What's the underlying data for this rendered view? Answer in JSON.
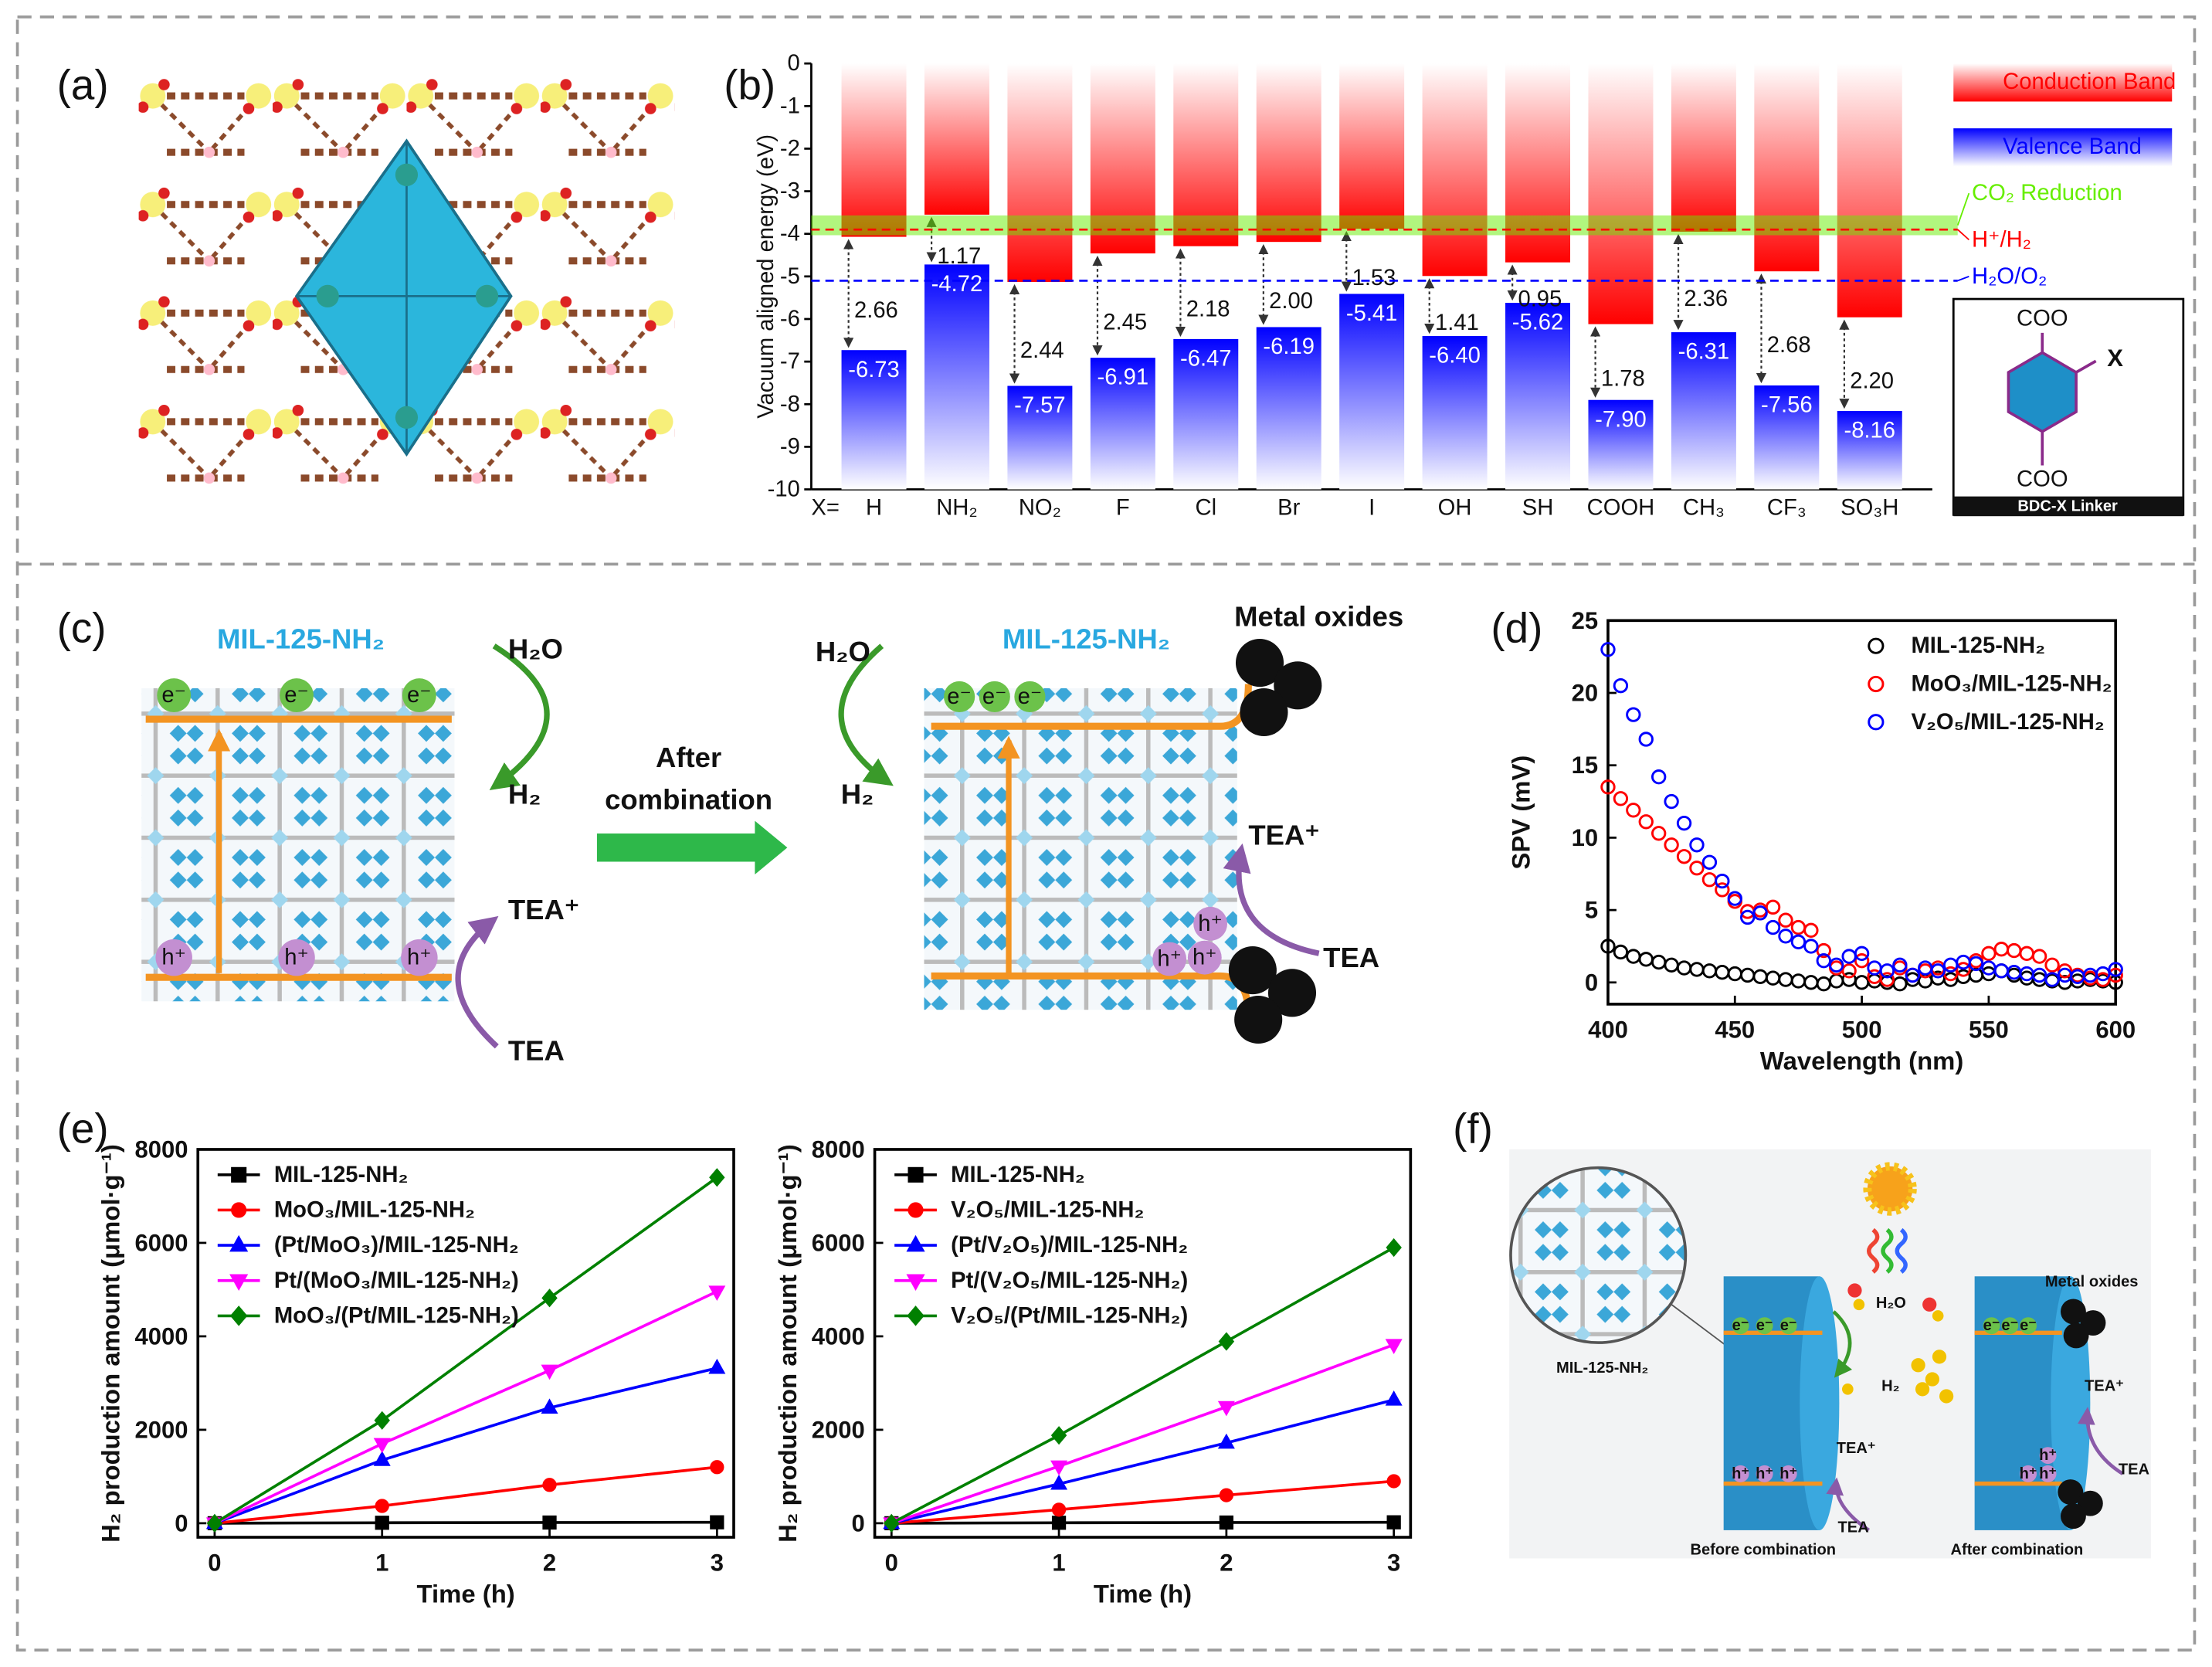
{
  "panel_labels": [
    "(a)",
    "(b)",
    "(c)",
    "(d)",
    "(e)",
    "(f)"
  ],
  "chart_data": [
    {
      "type": "bar",
      "ylabel": "Vacuum aligned energy (eV)",
      "x_prefix": "X=",
      "categories": [
        "H",
        "NH₂",
        "NO₂",
        "F",
        "Cl",
        "Br",
        "I",
        "OH",
        "SH",
        "COOH",
        "CH₃",
        "CF₃",
        "SO₃H"
      ],
      "series": [
        {
          "name": "Conduction Band",
          "color": "#ff0000",
          "values": [
            -4.07,
            -3.55,
            -5.13,
            -4.46,
            -4.29,
            -4.19,
            -3.88,
            -4.99,
            -4.67,
            -6.12,
            -3.95,
            -4.88,
            -5.96
          ]
        },
        {
          "name": "Valence Band",
          "color": "#0000ff",
          "values": [
            -6.73,
            -4.72,
            -7.57,
            -6.91,
            -6.47,
            -6.19,
            -5.41,
            -6.4,
            -5.62,
            -7.9,
            -6.31,
            -7.56,
            -8.16
          ],
          "value_labels": [
            "-6.73",
            "-4.72",
            "-7.57",
            "-6.91",
            "-6.47",
            "-6.19",
            "-5.41",
            "-6.40",
            "-5.62",
            "-7.90",
            "-6.31",
            "-7.56",
            "-8.16"
          ]
        }
      ],
      "gaps": {
        "values": [
          2.66,
          1.17,
          2.44,
          2.45,
          2.18,
          2,
          1.53,
          1.41,
          0.95,
          1.78,
          2.36,
          2.68,
          2.2
        ],
        "value_labels": [
          "2.66",
          "1.17",
          "2.44",
          "2.45",
          "2.18",
          "2.00",
          "1.53",
          "1.41",
          "0.95",
          "1.78",
          "2.36",
          "2.68",
          "2.20"
        ]
      },
      "reference_lines": [
        {
          "label": "CO₂ Reduction",
          "value": -3.8,
          "color": "#66ee00",
          "style": "band"
        },
        {
          "label": "H⁺/H₂",
          "value": -3.9,
          "color": "#ff0000",
          "style": "dashed"
        },
        {
          "label": "H₂O/O₂",
          "value": -5.1,
          "color": "#0000ff",
          "style": "dashed"
        }
      ],
      "ylim": [
        -10,
        0
      ],
      "yticks": [
        0,
        -1,
        -2,
        -3,
        -4,
        -5,
        -6,
        -7,
        -8,
        -9,
        -10
      ],
      "inset": {
        "title": "BDC-X Linker",
        "groups": [
          "COO",
          "COO"
        ],
        "substituent": "X"
      }
    },
    {
      "type": "scatter",
      "xlabel": "Wavelength (nm)",
      "ylabel": "SPV (mV)",
      "x": [
        400,
        405,
        410,
        415,
        420,
        425,
        430,
        435,
        440,
        445,
        450,
        455,
        460,
        465,
        470,
        475,
        480,
        485,
        490,
        495,
        500,
        505,
        510,
        515,
        520,
        525,
        530,
        535,
        540,
        545,
        550,
        555,
        560,
        565,
        570,
        575,
        580,
        585,
        590,
        595,
        600
      ],
      "series": [
        {
          "name": "MIL-125-NH₂",
          "color": "#000000",
          "values": [
            2.5,
            2.1,
            1.8,
            1.6,
            1.4,
            1.2,
            1.0,
            0.9,
            0.8,
            0.7,
            0.6,
            0.5,
            0.4,
            0.3,
            0.2,
            0.1,
            0.0,
            -0.1,
            0.1,
            0.2,
            0.0,
            0.1,
            0.0,
            -0.1,
            0.2,
            0.1,
            0.3,
            0.2,
            0.4,
            0.5,
            0.6,
            0.8,
            0.5,
            0.3,
            0.2,
            0.1,
            0.0,
            0.1,
            0.2,
            0.1,
            0.0
          ]
        },
        {
          "name": "MoO₃/MIL-125-NH₂",
          "color": "#ff0000",
          "values": [
            13.5,
            12.7,
            11.9,
            11.1,
            10.3,
            9.5,
            8.7,
            7.9,
            7.1,
            6.4,
            5.6,
            4.9,
            5.0,
            5.2,
            4.3,
            3.8,
            3.6,
            2.2,
            1.0,
            0.8,
            1.5,
            0.4,
            0.2,
            1.0,
            0.5,
            0.8,
            1.0,
            0.6,
            0.9,
            1.5,
            2.0,
            2.3,
            2.2,
            2.0,
            1.8,
            1.2,
            0.8,
            0.5,
            0.3,
            0.2,
            0.5
          ]
        },
        {
          "name": "V₂O₅/MIL-125-NH₂",
          "color": "#0000ff",
          "values": [
            23,
            20.5,
            18.5,
            16.8,
            14.2,
            12.5,
            11.0,
            9.5,
            8.3,
            7.0,
            5.8,
            4.5,
            4.8,
            3.8,
            3.2,
            2.8,
            2.5,
            1.5,
            1.2,
            1.8,
            2.0,
            1.0,
            0.8,
            1.2,
            0.5,
            1.0,
            0.8,
            1.2,
            1.4,
            1.3,
            1.0,
            0.8,
            0.7,
            0.6,
            0.5,
            0.2,
            0.5,
            0.4,
            0.5,
            0.6,
            0.9
          ]
        }
      ],
      "xlim": [
        400,
        600
      ],
      "xticks": [
        400,
        450,
        500,
        550,
        600
      ],
      "ylim": [
        -1.5,
        25
      ],
      "yticks": [
        0,
        5,
        10,
        15,
        20,
        25
      ],
      "legend": "upper right"
    },
    {
      "type": "line",
      "xlabel": "Time (h)",
      "ylabel": "H₂ production amount (μmol·g⁻¹)",
      "x": [
        0,
        1,
        2,
        3
      ],
      "series": [
        {
          "name": "MIL-125-NH₂",
          "color": "#000000",
          "marker": "square",
          "values": [
            0,
            10,
            15,
            20
          ]
        },
        {
          "name": "MoO₃/MIL-125-NH₂",
          "color": "#ff0000",
          "marker": "circle",
          "values": [
            0,
            370,
            820,
            1200
          ]
        },
        {
          "name": "(Pt/MoO₃)/MIL-125-NH₂",
          "color": "#0000ff",
          "marker": "triangle",
          "values": [
            0,
            1350,
            2470,
            3320
          ]
        },
        {
          "name": "Pt/(MoO₃/MIL-125-NH₂)",
          "color": "#ff00ff",
          "marker": "triangle-down",
          "values": [
            0,
            1700,
            3270,
            4960
          ]
        },
        {
          "name": "MoO₃/(Pt/MIL-125-NH₂)",
          "color": "#008000",
          "marker": "diamond",
          "values": [
            0,
            2200,
            4820,
            7400
          ]
        }
      ],
      "xlim": [
        -0.1,
        3.1
      ],
      "xticks": [
        0,
        1,
        2,
        3
      ],
      "ylim": [
        -300,
        8000
      ],
      "yticks": [
        0,
        2000,
        4000,
        6000,
        8000
      ],
      "legend": "upper left"
    },
    {
      "type": "line",
      "xlabel": "Time (h)",
      "ylabel": "H₂ production amount (μmol·g⁻¹)",
      "x": [
        0,
        1,
        2,
        3
      ],
      "series": [
        {
          "name": "MIL-125-NH₂",
          "color": "#000000",
          "marker": "square",
          "values": [
            0,
            10,
            15,
            20
          ]
        },
        {
          "name": "V₂O₅/MIL-125-NH₂",
          "color": "#ff0000",
          "marker": "circle",
          "values": [
            0,
            290,
            600,
            900
          ]
        },
        {
          "name": "(Pt/V₂O₅)/MIL-125-NH₂",
          "color": "#0000ff",
          "marker": "triangle",
          "values": [
            0,
            840,
            1720,
            2640
          ]
        },
        {
          "name": "Pt/(V₂O₅/MIL-125-NH₂)",
          "color": "#ff00ff",
          "marker": "triangle-down",
          "values": [
            0,
            1220,
            2490,
            3820
          ]
        },
        {
          "name": "V₂O₅/(Pt/MIL-125-NH₂)",
          "color": "#008000",
          "marker": "diamond",
          "values": [
            0,
            1880,
            3890,
            5900
          ]
        }
      ],
      "xlim": [
        -0.1,
        3.1
      ],
      "xticks": [
        0,
        1,
        2,
        3
      ],
      "ylim": [
        -300,
        8000
      ],
      "yticks": [
        0,
        2000,
        4000,
        6000,
        8000
      ],
      "legend": "upper left"
    }
  ],
  "diagram_c": {
    "left": {
      "framework": "MIL-125-NH₂",
      "reactant_top": "H₂O",
      "product_top": "H₂",
      "product_bottom": "TEA⁺",
      "reactant_bottom": "TEA",
      "electrons": [
        "e⁻",
        "e⁻",
        "e⁻"
      ],
      "holes": [
        "h⁺",
        "h⁺",
        "h⁺"
      ]
    },
    "transition": [
      "After",
      "combination"
    ],
    "right": {
      "framework": "MIL-125-NH₂",
      "reactant_top": "H₂O",
      "product_top": "H₂",
      "product_bottom": "TEA⁺",
      "reactant_bottom": "TEA",
      "metal_oxides": "Metal oxides",
      "electrons": [
        "e⁻",
        "e⁻",
        "e⁻"
      ],
      "holes": [
        "h⁺",
        "h⁺",
        "h⁺"
      ]
    }
  },
  "diagram_f": {
    "framework": "MIL-125-NH₂",
    "water": "H₂O",
    "hydrogen": "H₂",
    "before": {
      "oxidized": "TEA⁺",
      "donor": "TEA",
      "caption": "Before combination",
      "electrons": [
        "e⁻",
        "e⁻",
        "e⁻"
      ],
      "holes": [
        "h⁺",
        "h⁺",
        "h⁺"
      ]
    },
    "after": {
      "metal_oxides": "Metal oxides",
      "oxidized": "TEA⁺",
      "donor": "TEA",
      "caption": "After combination",
      "electrons": [
        "e⁻",
        "e⁻",
        "e⁻"
      ],
      "holes": [
        "h⁺",
        "h⁺",
        "h⁺"
      ]
    }
  }
}
